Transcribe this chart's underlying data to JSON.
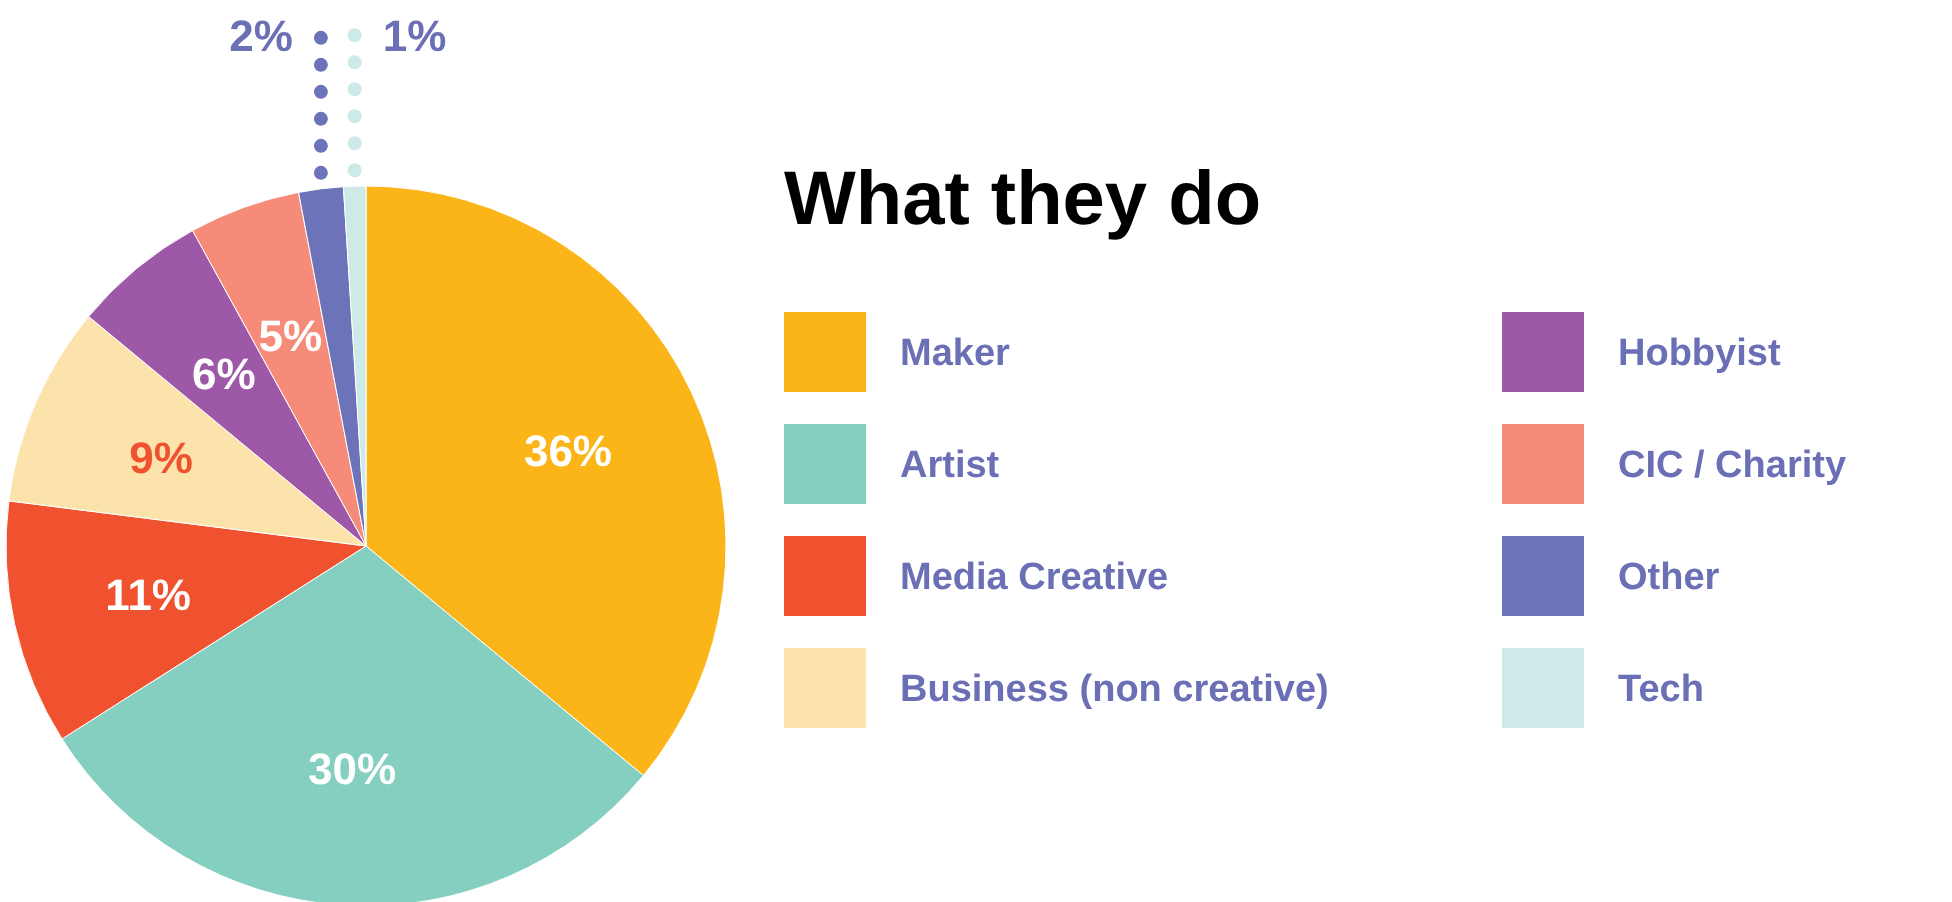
{
  "chart_data": {
    "type": "pie",
    "title": "What they do",
    "categories": [
      "Maker",
      "Artist",
      "Media Creative",
      "Business (non creative)",
      "Hobbyist",
      "CIC / Charity",
      "Other",
      "Tech"
    ],
    "values": [
      36,
      30,
      11,
      9,
      6,
      5,
      2,
      1
    ],
    "colors": [
      "#fbb518",
      "#84cfc0",
      "#f05230",
      "#fbe3ab",
      "#9e58a8",
      "#f68b79",
      "#6c73b8",
      "#cde9e8"
    ],
    "value_labels": [
      "36%",
      "30%",
      "11%",
      "9%",
      "6%",
      "5%",
      "2%",
      "1%"
    ],
    "legend": "right"
  }
}
